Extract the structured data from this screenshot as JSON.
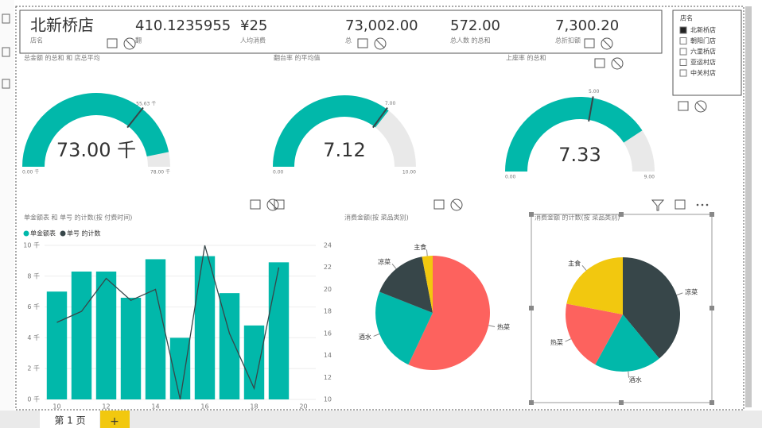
{
  "cards": [
    {
      "value": "北新桥店",
      "label": "店名"
    },
    {
      "value": "410.1235955",
      "label": "翻"
    },
    {
      "value": "¥25",
      "label": "人均消费"
    },
    {
      "value": "73,002.00",
      "label": "总"
    },
    {
      "value": "572.00",
      "label": "总人数 的总和"
    },
    {
      "value": "7,300.20",
      "label": "总折扣额"
    }
  ],
  "slicer": {
    "title": "店名",
    "items": [
      "北新桥店",
      "朝阳门店",
      "六里桥店",
      "亚运村店",
      "中关村店"
    ],
    "selected": 0
  },
  "gauges": [
    {
      "type": "gauge",
      "title": "总金额 的总和 和 店总平均",
      "color": "#01b8aa",
      "value": {
        "value": 73,
        "label": "73.00 千"
      },
      "min": {
        "value": 0,
        "label": "0.00 千"
      },
      "max": {
        "value": 78,
        "label": "78.00 千"
      },
      "target": {
        "value": 55.63,
        "label": "55.63 千"
      }
    },
    {
      "type": "gauge",
      "title": "翻台率 的平均值",
      "color": "#01b8aa",
      "value": 7.12,
      "min": {
        "value": 0,
        "label": "0.00"
      },
      "max": {
        "value": 10,
        "label": "10.00"
      },
      "target": {
        "value": 7,
        "label": "7.00"
      }
    },
    {
      "type": "gauge",
      "title": "上座率 的总和",
      "color": "#01b8aa",
      "value": 7.33,
      "min": {
        "value": 0,
        "label": "0.00"
      },
      "max": {
        "value": 9,
        "label": "9.00"
      },
      "target": {
        "value": 5,
        "label": "5.00"
      }
    }
  ],
  "combo_chart": {
    "type": "bar-line",
    "title": "单金额表 和 单号 的计数(按 付费时间)",
    "x": [
      10,
      11,
      12,
      13,
      14,
      15,
      16,
      17,
      18,
      19
    ],
    "xlim": [
      9.5,
      20.5
    ],
    "xticks": [
      10,
      12,
      14,
      16,
      18,
      20
    ],
    "series": [
      {
        "name": "单金额表",
        "color": "#01b8aa",
        "values": [
          7.0,
          8.3,
          8.3,
          6.6,
          9.1,
          4.0,
          9.3,
          6.9,
          4.8,
          8.9
        ]
      },
      {
        "name": "单号 的计数",
        "color": "#374649",
        "axis": "y2",
        "values": [
          17,
          18,
          21,
          19,
          20,
          10,
          24,
          16,
          11,
          22
        ]
      }
    ],
    "ylim": [
      0,
      10
    ],
    "yticks": [
      {
        "value": 0,
        "label": "0 千"
      },
      {
        "value": 2,
        "label": "2 千"
      },
      {
        "value": 4,
        "label": "4 千"
      },
      {
        "value": 6,
        "label": "6 千"
      },
      {
        "value": 8,
        "label": "8 千"
      },
      {
        "value": 10,
        "label": "10 千"
      }
    ],
    "y2lim": [
      10,
      24
    ],
    "y2ticks": [
      10,
      12,
      14,
      16,
      18,
      20,
      22,
      24
    ],
    "grid": true
  },
  "pie_charts": [
    {
      "type": "pie",
      "title": "消费金额(按 菜品类别)",
      "categories": [
        "热菜",
        "酒水",
        "凉菜",
        "主食"
      ],
      "values": [
        57,
        24,
        16,
        3
      ],
      "colors": [
        "#fd625e",
        "#01b8aa",
        "#374649",
        "#f2c80f"
      ]
    },
    {
      "type": "pie",
      "title": "消费金额 的计数(按 菜品类别)",
      "categories": [
        "凉菜",
        "酒水",
        "热菜",
        "主食"
      ],
      "values": [
        39,
        19,
        20,
        22
      ],
      "colors": [
        "#374649",
        "#01b8aa",
        "#fd625e",
        "#f2c80f"
      ]
    }
  ],
  "tabs": [
    "第 1 页",
    "+"
  ]
}
